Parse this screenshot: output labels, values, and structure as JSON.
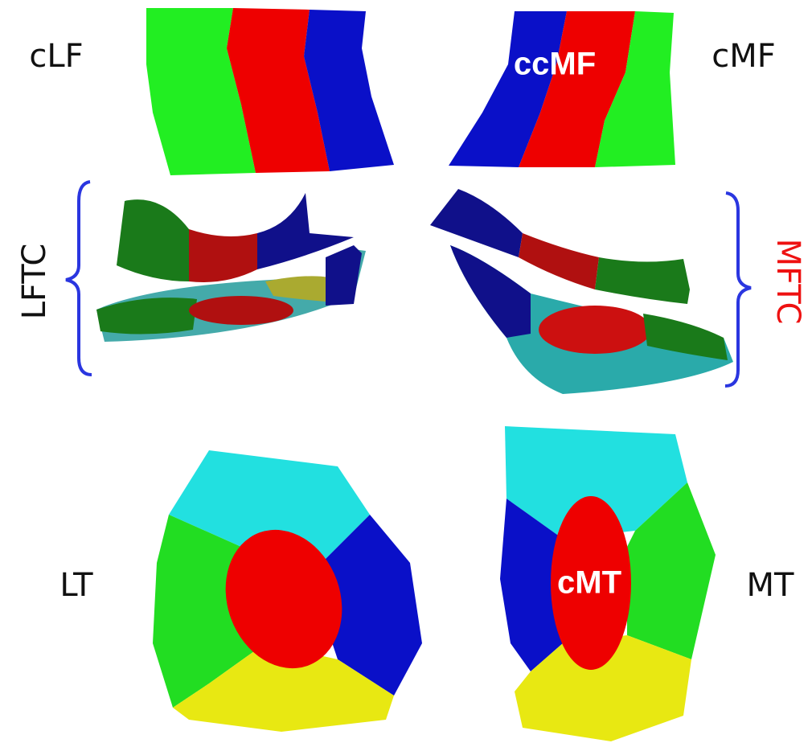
{
  "regions": [
    {
      "label": "cLF"
    },
    {
      "label": "cMF"
    },
    {
      "label": "LFTC"
    },
    {
      "label": "MFTC"
    },
    {
      "label": "LT"
    },
    {
      "label": "MT"
    }
  ],
  "subregions": [
    {
      "label": "ccMF"
    },
    {
      "label": "cMT"
    }
  ]
}
